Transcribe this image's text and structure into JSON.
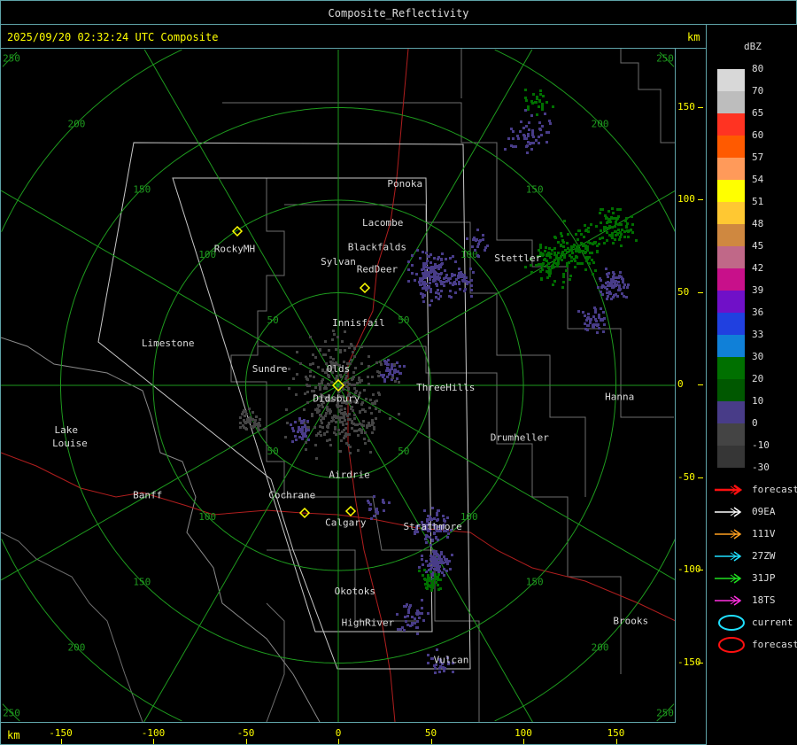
{
  "window": {
    "title": "Composite_Reflectivity"
  },
  "header": {
    "timestamp": "2025/09/20 02:32:24 UTC Composite",
    "unit": "km"
  },
  "axes": {
    "x_unit": "km",
    "x_ticks": [
      "-150",
      "-100",
      "-50",
      "0",
      "50",
      "100",
      "150"
    ],
    "y_ticks": [
      "150",
      "100",
      "50",
      "0",
      "-50",
      "-100",
      "-150"
    ],
    "range_rings_km": [
      "50",
      "100",
      "150",
      "200",
      "250"
    ]
  },
  "legend": {
    "title": "dBZ",
    "levels": [
      {
        "label": "80",
        "color": "#d8d8d8"
      },
      {
        "label": "70",
        "color": "#bdbdbd"
      },
      {
        "label": "65",
        "color": "#ff3322"
      },
      {
        "label": "60",
        "color": "#ff5a00"
      },
      {
        "label": "57",
        "color": "#ff9a5a"
      },
      {
        "label": "54",
        "color": "#ffff00"
      },
      {
        "label": "51",
        "color": "#ffc832"
      },
      {
        "label": "48",
        "color": "#cf8840"
      },
      {
        "label": "45",
        "color": "#c06888"
      },
      {
        "label": "42",
        "color": "#c8108a"
      },
      {
        "label": "39",
        "color": "#7010c8"
      },
      {
        "label": "36",
        "color": "#2040e0"
      },
      {
        "label": "33",
        "color": "#1080d8"
      },
      {
        "label": "30",
        "color": "#007000"
      },
      {
        "label": "20",
        "color": "#005800"
      },
      {
        "label": "10",
        "color": "#483c88"
      },
      {
        "label": "0",
        "color": "#444444"
      },
      {
        "label": "-10",
        "color": "#363636"
      },
      {
        "label": "-30",
        "color": ""
      }
    ],
    "tracks": [
      {
        "label": "forecast",
        "color": "#ff1010",
        "icon": "thick-arrow"
      },
      {
        "label": "09EA",
        "color": "#ffffff",
        "icon": "arrow"
      },
      {
        "label": "111V",
        "color": "#ffa020",
        "icon": "arrow"
      },
      {
        "label": "27ZW",
        "color": "#20e0ff",
        "icon": "arrow"
      },
      {
        "label": "31JP",
        "color": "#20e020",
        "icon": "arrow"
      },
      {
        "label": "18TS",
        "color": "#ff30e0",
        "icon": "arrow"
      }
    ],
    "cells": [
      {
        "label": "current",
        "color": "#20e0ff",
        "icon": "ellipse"
      },
      {
        "label": "forecast",
        "color": "#ff1010",
        "icon": "ellipse"
      }
    ]
  },
  "cities": [
    {
      "name": "Ponoka",
      "x": 36,
      "y": 109
    },
    {
      "name": "Lacombe",
      "x": 24,
      "y": 88
    },
    {
      "name": "Blackfalds",
      "x": 21,
      "y": 75
    },
    {
      "name": "Sylvan",
      "x": 0,
      "y": 67
    },
    {
      "name": "RedDeer",
      "x": 21,
      "y": 63
    },
    {
      "name": "Innisfail",
      "x": 11,
      "y": 34
    },
    {
      "name": "Olds",
      "x": 0,
      "y": 9
    },
    {
      "name": "Didsbury",
      "x": -1,
      "y": -7
    },
    {
      "name": "Sundre",
      "x": -37,
      "y": 9
    },
    {
      "name": "ThreeHills",
      "x": 58,
      "y": -1
    },
    {
      "name": "RockyMH",
      "x": -56,
      "y": 74
    },
    {
      "name": "Limestone",
      "x": -92,
      "y": 23
    },
    {
      "name": "Stettler",
      "x": 97,
      "y": 69
    },
    {
      "name": "Hanna",
      "x": 152,
      "y": -6
    },
    {
      "name": "Drumheller",
      "x": 98,
      "y": -28
    },
    {
      "name": "Lake",
      "x": -147,
      "y": -24
    },
    {
      "name": "Louise",
      "x": -145,
      "y": -31
    },
    {
      "name": "Banff",
      "x": -103,
      "y": -59
    },
    {
      "name": "Cochrane",
      "x": -25,
      "y": -59
    },
    {
      "name": "Airdrie",
      "x": 6,
      "y": -48
    },
    {
      "name": "Calgary",
      "x": 4,
      "y": -74
    },
    {
      "name": "Strathmore",
      "x": 51,
      "y": -76
    },
    {
      "name": "Okotoks",
      "x": 9,
      "y": -111
    },
    {
      "name": "HighRiver",
      "x": 16,
      "y": -128
    },
    {
      "name": "Vulcan",
      "x": 61,
      "y": -148
    },
    {
      "name": "Brooks",
      "x": 158,
      "y": -127
    }
  ],
  "echoes": [
    {
      "x": 50,
      "y": 60,
      "spread": 8,
      "n": 160,
      "color": "#483c88"
    },
    {
      "x": 66,
      "y": 58,
      "spread": 5,
      "n": 40,
      "color": "#483c88"
    },
    {
      "x": 115,
      "y": 67,
      "spread": 8,
      "n": 90,
      "color": "#007000"
    },
    {
      "x": 130,
      "y": 75,
      "spread": 8,
      "n": 90,
      "color": "#007000"
    },
    {
      "x": 148,
      "y": 85,
      "spread": 7,
      "n": 80,
      "color": "#007000"
    },
    {
      "x": 148,
      "y": 55,
      "spread": 6,
      "n": 70,
      "color": "#483c88"
    },
    {
      "x": 138,
      "y": 35,
      "spread": 5,
      "n": 40,
      "color": "#483c88"
    },
    {
      "x": 103,
      "y": 135,
      "spread": 8,
      "n": 50,
      "color": "#483c88"
    },
    {
      "x": 107,
      "y": 155,
      "spread": 5,
      "n": 25,
      "color": "#007000"
    },
    {
      "x": 50,
      "y": -75,
      "spread": 6,
      "n": 80,
      "color": "#483c88"
    },
    {
      "x": 52,
      "y": -95,
      "spread": 5,
      "n": 90,
      "color": "#483c88"
    },
    {
      "x": 50,
      "y": -105,
      "spread": 4,
      "n": 40,
      "color": "#007000"
    },
    {
      "x": 40,
      "y": -125,
      "spread": 6,
      "n": 40,
      "color": "#483c88"
    },
    {
      "x": 55,
      "y": -150,
      "spread": 5,
      "n": 25,
      "color": "#483c88"
    },
    {
      "x": 28,
      "y": 9,
      "spread": 4,
      "n": 40,
      "color": "#483c88"
    },
    {
      "x": 0,
      "y": 0,
      "spread": 18,
      "n": 260,
      "color": "#444444"
    },
    {
      "x": 0,
      "y": -20,
      "spread": 12,
      "n": 120,
      "color": "#444444"
    },
    {
      "x": -48,
      "y": -20,
      "spread": 5,
      "n": 40,
      "color": "#444444"
    },
    {
      "x": -20,
      "y": -23,
      "spread": 4,
      "n": 35,
      "color": "#483c88"
    },
    {
      "x": 20,
      "y": -65,
      "spread": 4,
      "n": 20,
      "color": "#483c88"
    },
    {
      "x": 75,
      "y": 78,
      "spread": 5,
      "n": 20,
      "color": "#483c88"
    }
  ]
}
